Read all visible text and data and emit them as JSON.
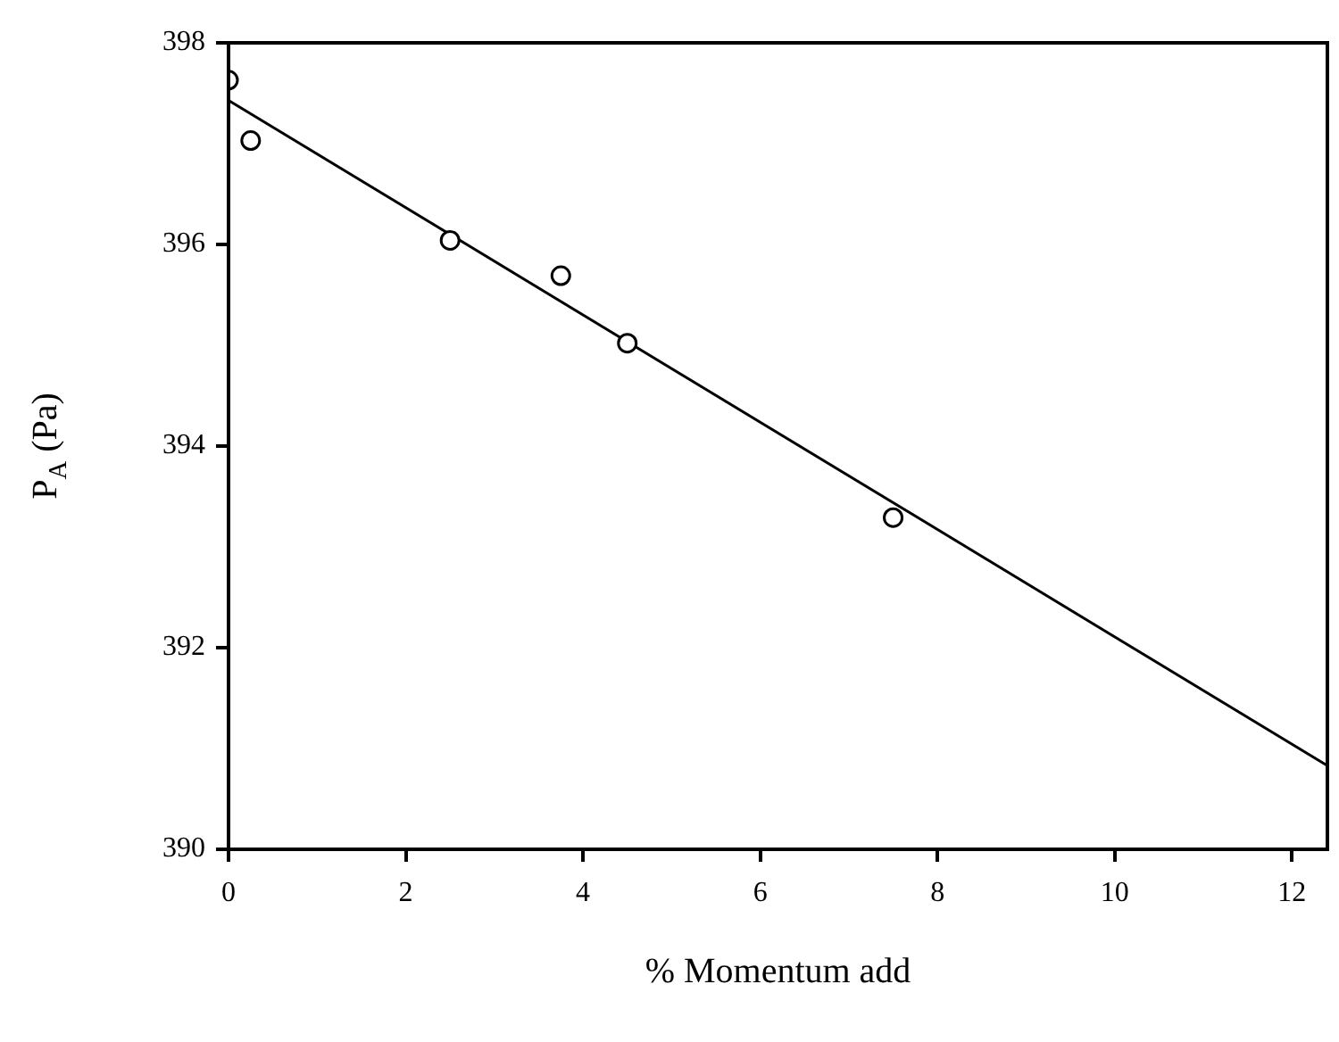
{
  "chart_data": {
    "type": "scatter",
    "xlabel": "% Momentum add",
    "ylabel": "P$_{A}$ (Pa)",
    "xlim": [
      0,
      12.4
    ],
    "xticks": [
      0,
      2,
      4,
      6,
      8,
      10,
      12
    ],
    "ylim": [
      390,
      398
    ],
    "yticks": [
      390,
      392,
      394,
      396,
      398
    ],
    "grid": false,
    "legend": false,
    "marker": "circle",
    "series": [
      {
        "color": "#000000",
        "x": [
          0,
          0.25,
          2.5,
          3.75,
          4.5,
          7.5
        ],
        "values": [
          397.63,
          397.03,
          396.04,
          395.69,
          395.02,
          393.29
        ]
      },
      {
        "type": "line",
        "color": "#000000",
        "marker": "none",
        "line_style": "solid",
        "x": [
          0,
          12.4
        ],
        "values": [
          397.43,
          390.83
        ]
      }
    ]
  }
}
